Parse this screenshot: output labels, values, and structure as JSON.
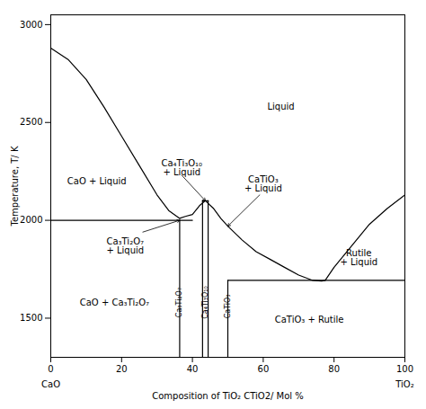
{
  "chart_data": {
    "type": "line",
    "xlabel": "Composition of TiO₂ CTiO2/ Mol %",
    "ylabel": "Temperature, T/ K",
    "xlim": [
      0,
      100
    ],
    "ylim": [
      1300,
      3050
    ],
    "xticks": [
      0,
      20,
      40,
      60,
      80,
      100
    ],
    "yticks": [
      1500,
      2000,
      2500,
      3000
    ],
    "grid": false,
    "color": "#000000",
    "series": [
      {
        "x": [
          0,
          5,
          10,
          15,
          20,
          25,
          30,
          33.3,
          36.4
        ],
        "values": [
          2880,
          2820,
          2720,
          2580,
          2430,
          2280,
          2130,
          2050,
          2010
        ]
      },
      {
        "x": [
          36.4,
          38,
          40,
          42,
          43.65
        ],
        "values": [
          2010,
          2020,
          2030,
          2075,
          2100
        ]
      },
      {
        "x": [
          43.65,
          46,
          48,
          50
        ],
        "values": [
          2100,
          2060,
          2010,
          1970
        ]
      },
      {
        "x": [
          50,
          54,
          58,
          62,
          66,
          70,
          74,
          76.5,
          77.5
        ],
        "values": [
          1970,
          1900,
          1840,
          1800,
          1760,
          1720,
          1693,
          1690,
          1693
        ]
      },
      {
        "x": [
          77.5,
          80,
          85,
          90,
          95,
          100
        ],
        "values": [
          1693,
          1760,
          1870,
          1980,
          2060,
          2130
        ]
      },
      {
        "x": [
          0,
          36.4
        ],
        "values": [
          2000,
          2000
        ]
      },
      {
        "x": [
          50,
          100
        ],
        "values": [
          1693,
          1693
        ]
      },
      {
        "x": [
          36.4,
          40
        ],
        "values": [
          2000,
          2000
        ]
      },
      {
        "x": [
          36.4,
          36.4
        ],
        "values": [
          1300,
          2000
        ]
      },
      {
        "x": [
          42.86,
          42.86
        ],
        "values": [
          1300,
          2100
        ]
      },
      {
        "x": [
          44.44,
          44.44
        ],
        "values": [
          1300,
          2100
        ]
      },
      {
        "x": [
          42.86,
          44.44
        ],
        "values": [
          2100,
          2100
        ]
      },
      {
        "x": [
          50,
          50
        ],
        "values": [
          1300,
          1693
        ]
      }
    ],
    "annotations": [
      {
        "text": "Liquid",
        "x": 65,
        "y": 2580
      },
      {
        "text": "CaO + Liquid",
        "x": 13,
        "y": 2200
      },
      {
        "text": "Ca₃Ti₂O₇\n+ Liquid",
        "x": 21,
        "y": 1870
      },
      {
        "text": "CaTiO₃\n+ Liquid",
        "x": 60,
        "y": 2185
      },
      {
        "text": "Rutile\n+ Liquid",
        "x": 87,
        "y": 1810
      },
      {
        "text": "CaO + Ca₃Ti₂O₇",
        "x": 18,
        "y": 1580
      },
      {
        "text": "CaTiO₃ + Rutile",
        "x": 73,
        "y": 1490
      },
      {
        "text": "Ca₄Ti₃O₁₀\n+ Liquid",
        "x": 37,
        "y": 2230,
        "arrow_to": [
          43.65,
          2100
        ]
      }
    ],
    "arrows": [
      {
        "from": [
          59,
          2130
        ],
        "to": [
          50,
          1970
        ]
      },
      {
        "from": [
          26,
          1940
        ],
        "to": [
          36.4,
          2000
        ]
      }
    ],
    "column_labels": [
      {
        "text": "Ca₃Ti₂O₇",
        "x": 36.4,
        "y": 1580
      },
      {
        "text": "Ca₄Ti₃O₁₀",
        "x": 43.65,
        "y": 1580
      },
      {
        "text": "CaTiO₃",
        "x": 50,
        "y": 1560
      }
    ],
    "axis_end_labels": [
      {
        "text": "CaO",
        "x": 0
      },
      {
        "text": "TiO₂",
        "x": 100
      }
    ]
  }
}
